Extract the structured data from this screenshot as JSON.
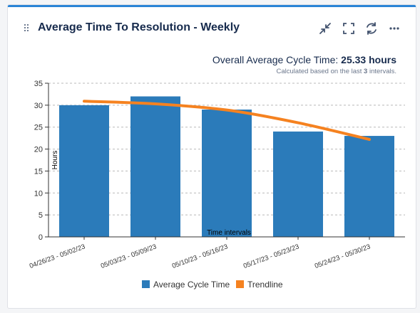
{
  "widget": {
    "title": "Average Time To Resolution - Weekly",
    "toolbar": {
      "collapse_icon": "collapse-arrows-icon",
      "fullscreen_icon": "fullscreen-icon",
      "refresh_icon": "refresh-icon",
      "more_icon": "more-dots-icon"
    },
    "summary": {
      "label": "Overall Average Cycle Time:",
      "value": "25.33 hours",
      "note_prefix": "Calculated based on the last",
      "note_count": "3",
      "note_suffix": "intervals."
    }
  },
  "colors": {
    "bar": "#2b7bba",
    "trend": "#f58220",
    "accent": "#2b84d6"
  },
  "chart_data": {
    "type": "bar",
    "categories": [
      "04/26/23 - 05/02/23",
      "05/03/23 - 05/09/23",
      "05/10/23 - 05/16/23",
      "05/17/23 - 05/23/23",
      "05/24/23 - 05/30/23"
    ],
    "series": [
      {
        "name": "Average Cycle Time",
        "type": "bar",
        "values": [
          30,
          32,
          29,
          24,
          23
        ]
      },
      {
        "name": "Trendline",
        "type": "line",
        "values": [
          30.9,
          30.3,
          28.9,
          26.0,
          22.2
        ]
      }
    ],
    "xlabel": "Time intervals",
    "ylabel": "Hours",
    "ylim": [
      0,
      35
    ],
    "yticks": [
      0,
      5,
      10,
      15,
      20,
      25,
      30,
      35
    ],
    "grid": true,
    "legend": "bottom"
  }
}
